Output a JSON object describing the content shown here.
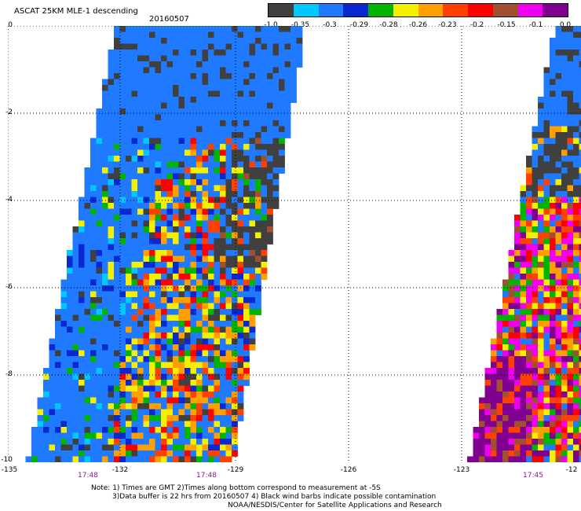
{
  "header": {
    "title": "ASCAT 25KM MLE-1 descending",
    "date": "20160507"
  },
  "colorbar": {
    "colors": [
      "#404040",
      "#00c8ff",
      "#1f7aff",
      "#0a28d0",
      "#00b400",
      "#f5f000",
      "#ffa000",
      "#ff4000",
      "#ff0000",
      "#a05030",
      "#f000f0",
      "#800090"
    ],
    "tick_labels": [
      "-1.0",
      "-0.35",
      "-0.3",
      "-0.29",
      "-0.28",
      "-0.26",
      "-0.23",
      "-0.2",
      "-0.15",
      "-0.1",
      "0.0"
    ]
  },
  "axes": {
    "y_ticks": [
      "0",
      "-2",
      "-4",
      "-6",
      "-8",
      "-10"
    ],
    "x_ticks": [
      "-135",
      "-132",
      "-129",
      "-126",
      "-123",
      "-12"
    ],
    "grid": "dotted",
    "pass_times": [
      "17:48",
      "17:48",
      "17:45"
    ]
  },
  "footer": {
    "note_line1": "Note: 1) Times are GMT 2)Times along bottom correspond to measurement at -5S",
    "note_line2": "3)Data buffer is 22 hrs from 20160507 4) Black wind barbs indicate possible contamination",
    "credit": "NOAA/NESDIS/Center for Satellite Applications and Research"
  }
}
